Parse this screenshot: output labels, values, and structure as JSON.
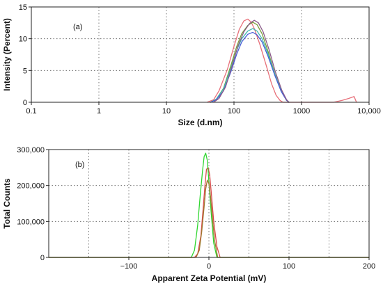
{
  "chart_data": [
    {
      "type": "line",
      "panel_label": "(a)",
      "xlabel": "Size (d.nm)",
      "ylabel": "Intensity (Percent)",
      "x_scale": "log",
      "xlim": [
        0.1,
        10000
      ],
      "ylim": [
        0,
        15
      ],
      "x_ticks": [
        {
          "value": 0.1,
          "label": "0.1"
        },
        {
          "value": 1,
          "label": "1"
        },
        {
          "value": 10,
          "label": "10"
        },
        {
          "value": 100,
          "label": "100"
        },
        {
          "value": 1000,
          "label": "1000"
        },
        {
          "value": 10000,
          "label": "10,000"
        }
      ],
      "y_ticks": [
        {
          "value": 0,
          "label": "0"
        },
        {
          "value": 5,
          "label": "5"
        },
        {
          "value": 10,
          "label": "10"
        },
        {
          "value": 15,
          "label": "15"
        }
      ],
      "grid": true,
      "series": [
        {
          "color": "#e8707a",
          "x": [
            40,
            50,
            60,
            80,
            100,
            120,
            140,
            160,
            180,
            200,
            240,
            300,
            360,
            420,
            480,
            530,
            3000,
            4000,
            5000,
            6000,
            6500
          ],
          "y": [
            0,
            0.4,
            1.8,
            5.2,
            8.8,
            11.5,
            12.8,
            13.1,
            12.6,
            11.6,
            9.2,
            5.8,
            2.9,
            1.1,
            0.3,
            0,
            0,
            0.3,
            0.6,
            0.9,
            0
          ]
        },
        {
          "color": "#7a9e3a",
          "x": [
            45,
            55,
            70,
            90,
            110,
            130,
            160,
            190,
            220,
            260,
            320,
            400,
            500,
            600,
            650
          ],
          "y": [
            0,
            0.5,
            2.2,
            5.8,
            8.8,
            10.8,
            12.1,
            12.6,
            12.2,
            10.8,
            8.0,
            4.6,
            1.8,
            0.3,
            0
          ]
        },
        {
          "color": "#3fb8b0",
          "x": [
            45,
            55,
            70,
            90,
            110,
            130,
            160,
            190,
            220,
            260,
            320,
            400,
            500,
            600,
            650
          ],
          "y": [
            0,
            0.5,
            2.1,
            5.4,
            8.2,
            10.0,
            11.2,
            11.6,
            11.2,
            10.0,
            7.6,
            4.5,
            1.8,
            0.4,
            0
          ]
        },
        {
          "color": "#4a5fd6",
          "x": [
            45,
            55,
            70,
            90,
            110,
            130,
            160,
            190,
            220,
            260,
            320,
            400,
            500,
            600,
            650
          ],
          "y": [
            0,
            0.4,
            1.8,
            4.8,
            7.6,
            9.5,
            10.7,
            11.0,
            10.6,
            9.5,
            7.2,
            4.3,
            1.7,
            0.3,
            0
          ]
        },
        {
          "color": "#8a5a8a",
          "x": [
            50,
            60,
            75,
            95,
            115,
            140,
            170,
            200,
            230,
            270,
            330,
            410,
            510,
            600,
            650
          ],
          "y": [
            0,
            0.6,
            2.4,
            5.9,
            8.9,
            11.1,
            12.4,
            12.9,
            12.5,
            11.1,
            8.3,
            4.8,
            1.9,
            0.4,
            0
          ]
        }
      ]
    },
    {
      "type": "line",
      "panel_label": "(b)",
      "xlabel": "Apparent Zeta Potential (mV)",
      "ylabel": "Total Counts",
      "x_scale": "linear",
      "xlim": [
        -200,
        200
      ],
      "ylim": [
        0,
        300000
      ],
      "x_ticks": [
        {
          "value": -100,
          "label": "−100"
        },
        {
          "value": 0,
          "label": "0"
        },
        {
          "value": 100,
          "label": "100"
        },
        {
          "value": 200,
          "label": "200"
        }
      ],
      "x_grid": [
        -150,
        -100,
        -50,
        0,
        50,
        100,
        150,
        200
      ],
      "y_ticks": [
        {
          "value": 0,
          "label": "0"
        },
        {
          "value": 100000,
          "label": "100,000"
        },
        {
          "value": 200000,
          "label": "200,000"
        },
        {
          "value": 300000,
          "label": "300,000"
        }
      ],
      "grid": true,
      "series": [
        {
          "color": "#d84a4a",
          "x": [
            -200,
            -18,
            -14,
            -10,
            -7,
            -5,
            -3,
            -1,
            1,
            3,
            6,
            10,
            14,
            200
          ],
          "y": [
            0,
            0,
            10000,
            60000,
            140000,
            200000,
            245000,
            250000,
            230000,
            180000,
            100000,
            30000,
            0,
            0
          ]
        },
        {
          "color": "#2fd62f",
          "x": [
            -200,
            -22,
            -18,
            -14,
            -11,
            -8,
            -6,
            -4,
            -2,
            0,
            3,
            6,
            10,
            200
          ],
          "y": [
            0,
            0,
            20000,
            90000,
            170000,
            240000,
            280000,
            290000,
            270000,
            210000,
            120000,
            40000,
            0,
            0
          ]
        },
        {
          "color": "#a07a30",
          "x": [
            -200,
            -16,
            -12,
            -9,
            -6,
            -4,
            -2,
            0,
            2,
            4,
            7,
            11,
            200
          ],
          "y": [
            0,
            0,
            20000,
            70000,
            140000,
            190000,
            215000,
            205000,
            170000,
            120000,
            50000,
            0,
            0
          ]
        }
      ]
    }
  ]
}
